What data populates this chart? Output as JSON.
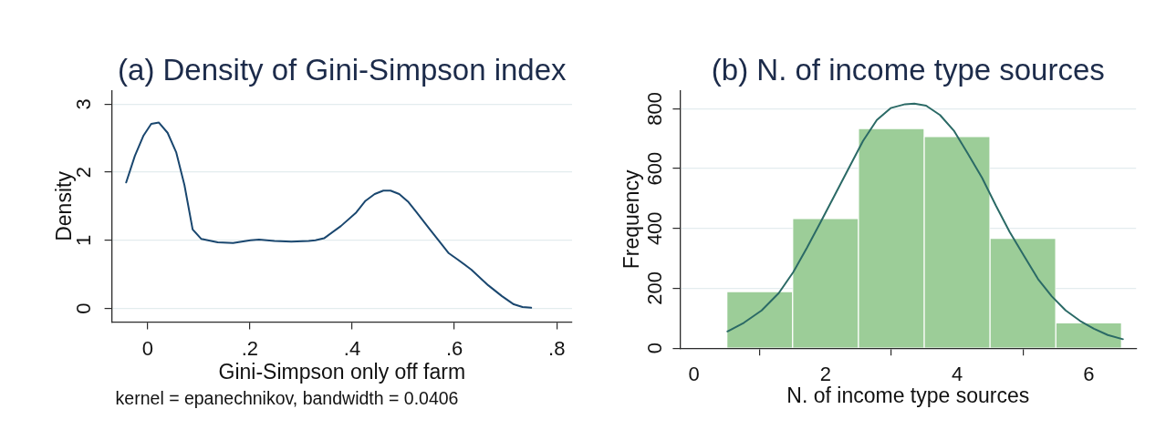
{
  "chart_data": [
    {
      "type": "line",
      "title": "(a) Density of Gini-Simpson index",
      "xlabel": "Gini-Simpson only off farm",
      "ylabel": "Density",
      "annotations": [
        "kernel = epanechnikov, bandwidth = 0.0406"
      ],
      "x": [
        -0.042,
        -0.025,
        -0.008,
        0.007,
        0.022,
        0.039,
        0.056,
        0.072,
        0.088,
        0.105,
        0.137,
        0.167,
        0.201,
        0.218,
        0.248,
        0.281,
        0.315,
        0.328,
        0.345,
        0.378,
        0.408,
        0.426,
        0.444,
        0.461,
        0.475,
        0.492,
        0.509,
        0.525,
        0.552,
        0.589,
        0.606,
        0.633,
        0.666,
        0.693,
        0.716,
        0.733,
        0.75
      ],
      "values": [
        1.85,
        2.24,
        2.54,
        2.71,
        2.73,
        2.58,
        2.29,
        1.81,
        1.16,
        1.02,
        0.97,
        0.96,
        1.0,
        1.01,
        0.99,
        0.98,
        0.99,
        1.0,
        1.03,
        1.21,
        1.41,
        1.58,
        1.68,
        1.73,
        1.73,
        1.68,
        1.57,
        1.42,
        1.16,
        0.81,
        0.72,
        0.57,
        0.34,
        0.18,
        0.06,
        0.02,
        0.01
      ],
      "color": "#1a476f",
      "xlim": [
        -0.07,
        0.83
      ],
      "ylim": [
        -0.2,
        3.2
      ],
      "xticks": [
        0,
        {
          "value": 0.2,
          "label": ".2"
        },
        {
          "value": 0.4,
          "label": ".4"
        },
        {
          "value": 0.6,
          "label": ".6"
        },
        {
          "value": 0.8,
          "label": ".8"
        }
      ],
      "yticks": [
        0,
        1,
        2,
        3
      ],
      "grid": "y"
    },
    {
      "type": "histogram",
      "title": "(b) N. of income type sources",
      "xlabel": "N. of income type sources",
      "ylabel": "Frequency",
      "bins": [
        0.5,
        1.5,
        2.5,
        3.5,
        4.5,
        5.5,
        6.5
      ],
      "series": [
        {
          "color": "#9ccd98",
          "values": [
            189,
            433,
            734,
            707,
            367,
            85
          ]
        },
        {
          "type": "line",
          "color": "#2b6a66",
          "x": [
            0.51,
            0.76,
            1.03,
            1.29,
            1.51,
            1.72,
            1.93,
            2.14,
            2.36,
            2.57,
            2.78,
            2.99,
            3.21,
            3.35,
            3.53,
            3.74,
            3.95,
            4.16,
            4.38,
            4.59,
            4.8,
            5.02,
            5.23,
            5.44,
            5.65,
            5.87,
            6.08,
            6.29,
            6.52
          ],
          "values": [
            56,
            85,
            126,
            184,
            254,
            336,
            423,
            511,
            604,
            692,
            762,
            802,
            815,
            817,
            810,
            779,
            727,
            651,
            569,
            476,
            388,
            307,
            231,
            173,
            126,
            91,
            65,
            44,
            30
          ]
        }
      ],
      "xlim": [
        -0.21,
        6.72
      ],
      "ylim": [
        0,
        860
      ],
      "xticks": [
        0,
        2,
        4,
        6
      ],
      "yticks": [
        0,
        200,
        400,
        600,
        800
      ],
      "grid": "y"
    }
  ]
}
